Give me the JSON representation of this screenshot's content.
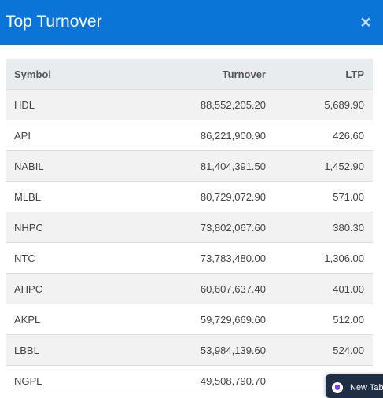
{
  "modal": {
    "title": "Top Turnover",
    "close_glyph": "×"
  },
  "table": {
    "headers": {
      "symbol": "Symbol",
      "turnover": "Turnover",
      "ltp": "LTP"
    },
    "rows": [
      {
        "symbol": "HDL",
        "turnover": "88,552,205.20",
        "ltp": "5,689.90"
      },
      {
        "symbol": "API",
        "turnover": "86,221,900.90",
        "ltp": "426.60"
      },
      {
        "symbol": "NABIL",
        "turnover": "81,404,391.50",
        "ltp": "1,452.90"
      },
      {
        "symbol": "MLBL",
        "turnover": "80,729,072.90",
        "ltp": "571.00"
      },
      {
        "symbol": "NHPC",
        "turnover": "73,802,067.60",
        "ltp": "380.30"
      },
      {
        "symbol": "NTC",
        "turnover": "73,783,480.00",
        "ltp": "1,306.00"
      },
      {
        "symbol": "AHPC",
        "turnover": "60,607,637.40",
        "ltp": "401.00"
      },
      {
        "symbol": "AKPL",
        "turnover": "59,729,669.60",
        "ltp": "512.00"
      },
      {
        "symbol": "LBBL",
        "turnover": "53,984,139.60",
        "ltp": "524.00"
      },
      {
        "symbol": "NGPL",
        "turnover": "49,508,790.70",
        "ltp": ""
      }
    ]
  },
  "badge": {
    "label": "New Tab",
    "icon": "extension-shield-icon"
  },
  "colors": {
    "header_bg": "#0b74d7",
    "table_header_bg": "#e9ecef",
    "row_stripe": "#f2f2f2"
  }
}
